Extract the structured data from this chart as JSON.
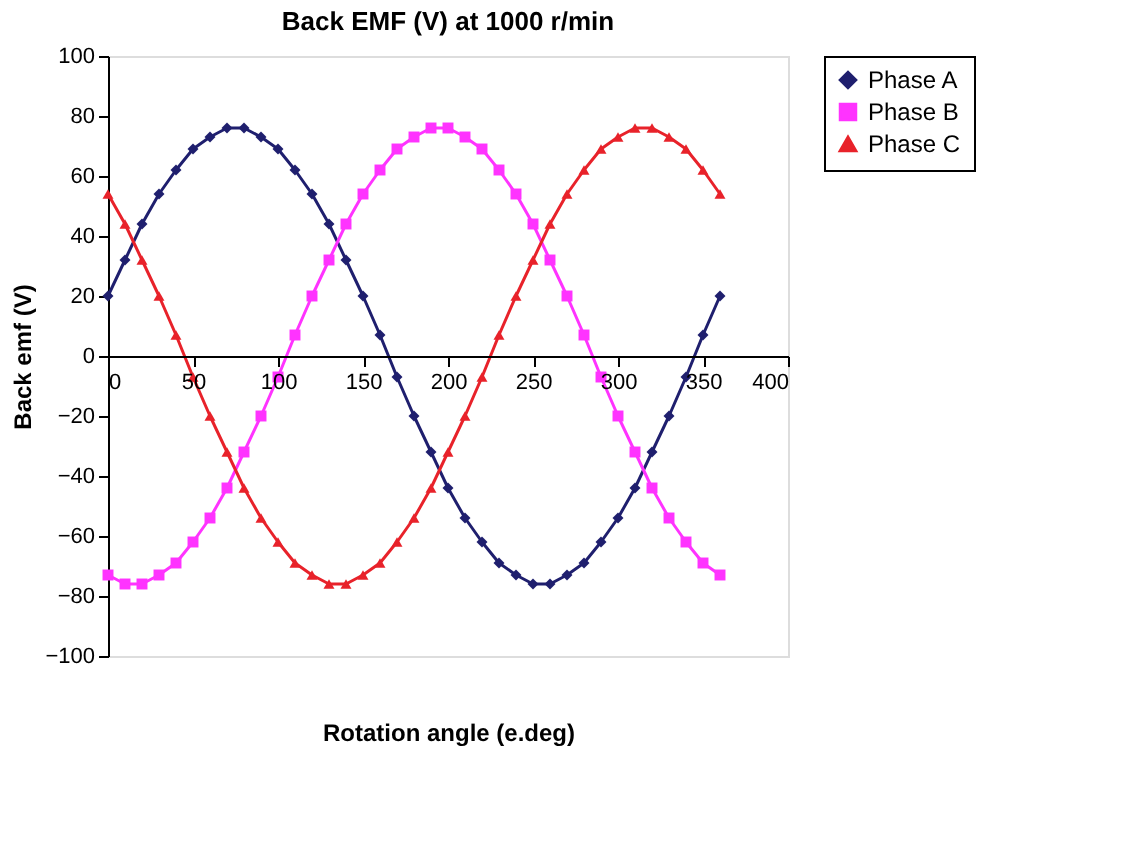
{
  "chart_data": {
    "type": "line",
    "title": "Back EMF (V) at 1000 r/min",
    "xlabel": "Rotation angle (e.deg)",
    "ylabel": "Back emf (V)",
    "x": [
      0,
      10,
      20,
      30,
      40,
      50,
      60,
      70,
      80,
      90,
      100,
      110,
      120,
      130,
      140,
      150,
      160,
      170,
      180,
      190,
      200,
      210,
      220,
      230,
      240,
      250,
      260,
      270,
      280,
      290,
      300,
      310,
      320,
      330,
      340,
      350,
      360
    ],
    "series": [
      {
        "name": "Phase A",
        "color": "#1f1f6e",
        "marker": "diamond",
        "values": [
          20,
          32,
          44,
          54,
          62,
          69,
          73,
          76,
          76,
          73,
          69,
          62,
          54,
          44,
          32,
          20,
          7,
          -7,
          -20,
          -32,
          -44,
          -54,
          -62,
          -69,
          -73,
          -76,
          -76,
          -73,
          -69,
          -62,
          -54,
          -44,
          -32,
          -20,
          -7,
          7,
          20
        ]
      },
      {
        "name": "Phase B",
        "color": "#ff33ff",
        "marker": "square",
        "values": [
          -73,
          -76,
          -76,
          -73,
          -69,
          -62,
          -54,
          -44,
          -32,
          -20,
          -7,
          7,
          20,
          32,
          44,
          54,
          62,
          69,
          73,
          76,
          76,
          73,
          69,
          62,
          54,
          44,
          32,
          20,
          7,
          -7,
          -20,
          -32,
          -44,
          -54,
          -62,
          -69,
          -73
        ]
      },
      {
        "name": "Phase C",
        "color": "#e8222a",
        "marker": "triangle",
        "values": [
          54,
          44,
          32,
          20,
          7,
          -7,
          -20,
          -32,
          -44,
          -54,
          -62,
          -69,
          -73,
          -76,
          -76,
          -73,
          -69,
          -62,
          -54,
          -44,
          -32,
          -20,
          -7,
          7,
          20,
          32,
          44,
          54,
          62,
          69,
          73,
          76,
          76,
          73,
          69,
          62,
          54
        ]
      }
    ],
    "xlim": [
      0,
      400
    ],
    "xticks": [
      0,
      50,
      100,
      150,
      200,
      250,
      300,
      350,
      400
    ],
    "ylim": [
      -100,
      100
    ],
    "yticks": [
      -100,
      -80,
      -60,
      -40,
      -20,
      0,
      20,
      40,
      60,
      80,
      100
    ],
    "grid": false,
    "legend": "right",
    "line_style": "solid"
  }
}
